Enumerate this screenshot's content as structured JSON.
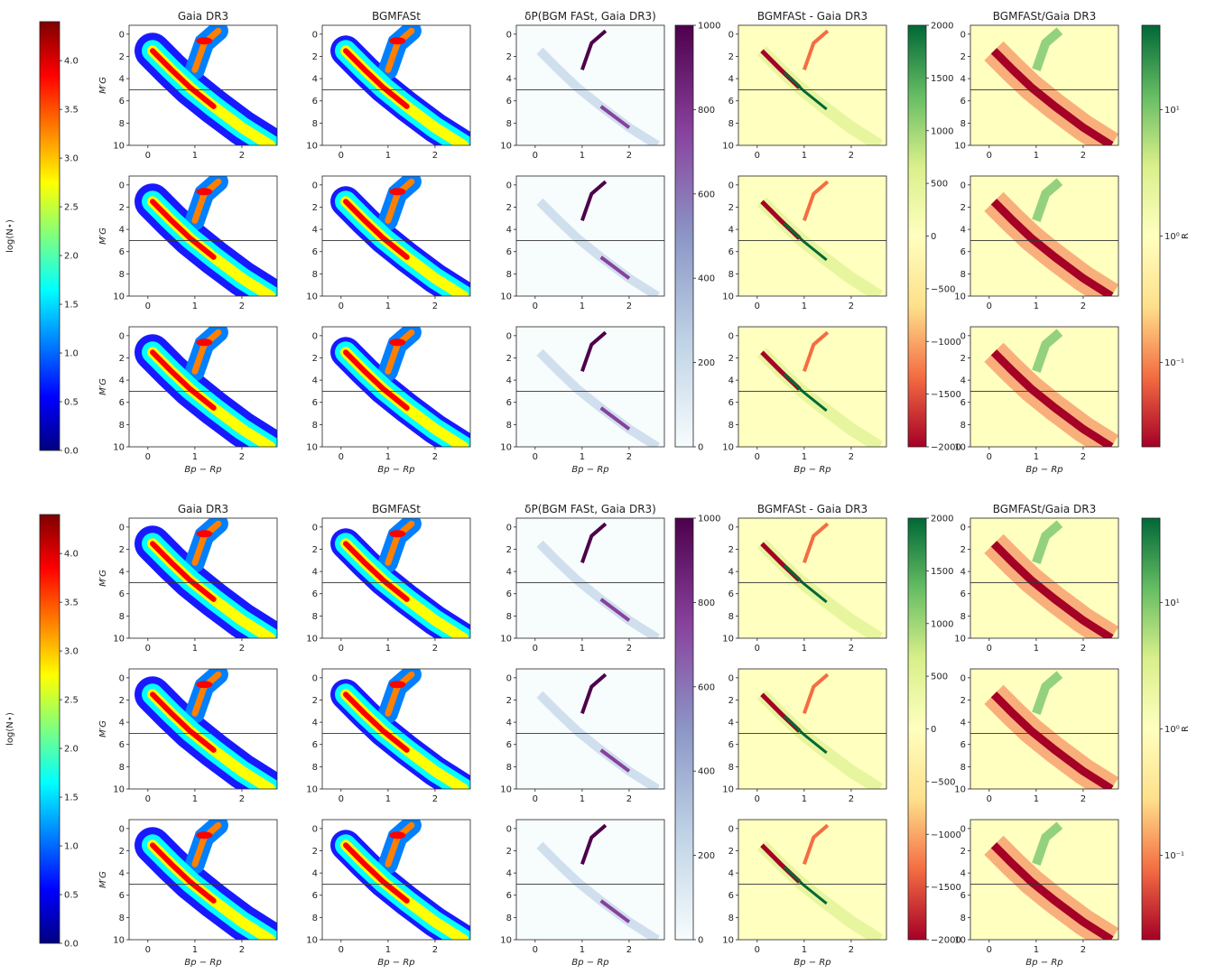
{
  "figure": {
    "columns": [
      {
        "key": "gaia",
        "title": "Gaia DR3",
        "kind": "density"
      },
      {
        "key": "bgm",
        "title": "BGMFASt",
        "kind": "density"
      },
      {
        "key": "delta",
        "title": "δP(BGM FASt, Gaia DR3)",
        "kind": "delta"
      },
      {
        "key": "diff",
        "title": "BGMFASt - Gaia DR3",
        "kind": "diff"
      },
      {
        "key": "ratio",
        "title": "BGMFASt/Gaia DR3",
        "kind": "ratio"
      }
    ],
    "panels_per_column": 3,
    "panel_groups": 2
  },
  "chart_data": {
    "type": "heatmap",
    "xlabel": "Bp − Rp",
    "ylabel": "M′G",
    "xlim": [
      -0.4,
      2.75
    ],
    "ylim": [
      10,
      -0.8
    ],
    "x_ticks": [
      0,
      1,
      2
    ],
    "y_ticks": [
      0,
      2,
      4,
      6,
      8,
      10
    ],
    "reference_line_MG": 5,
    "structures": {
      "main_sequence": {
        "points": [
          [
            0.1,
            1.5
          ],
          [
            0.5,
            3.2
          ],
          [
            0.9,
            4.8
          ],
          [
            1.4,
            6.5
          ],
          [
            2.0,
            8.4
          ],
          [
            2.6,
            10.0
          ]
        ]
      },
      "red_clump": {
        "x": 1.2,
        "MG": 0.6
      },
      "giant_branch": {
        "points": [
          [
            1.0,
            3.2
          ],
          [
            1.1,
            2.0
          ],
          [
            1.2,
            0.8
          ],
          [
            1.5,
            -0.3
          ]
        ]
      }
    },
    "colorbars": {
      "density": {
        "label": "log(N⋆)",
        "range": [
          0,
          4.4
        ],
        "ticks": [
          "0.0",
          "0.5",
          "1.0",
          "1.5",
          "2.0",
          "2.5",
          "3.0",
          "3.5",
          "4.0"
        ],
        "cmap": "jet"
      },
      "delta": {
        "label": "",
        "range": [
          0,
          1000
        ],
        "ticks": [
          "0",
          "200",
          "400",
          "600",
          "800",
          "1000"
        ],
        "cmap": "BuPu"
      },
      "diff": {
        "label": "",
        "range": [
          -2000,
          2000
        ],
        "ticks": [
          "−2000",
          "−1500",
          "−1000",
          "−500",
          "0",
          "500",
          "1000",
          "1500",
          "2000"
        ],
        "cmap": "RdYlGn"
      },
      "ratio": {
        "label": "R",
        "range": [
          0.02,
          50
        ],
        "ticks": [
          "10⁻¹",
          "10⁰",
          "10¹"
        ],
        "cmap": "RdYlGn"
      }
    }
  },
  "colors": {
    "jet": [
      "#00007f",
      "#0000ff",
      "#007fff",
      "#00ffff",
      "#7fff7f",
      "#ffff00",
      "#ff7f00",
      "#ff0000",
      "#7f0000"
    ],
    "bupu": [
      "#f7fcfd",
      "#bfd3e6",
      "#8c96c6",
      "#88419d",
      "#4d004b"
    ],
    "rdylgn": [
      "#a50026",
      "#f46d43",
      "#fee08b",
      "#ffffbf",
      "#d9ef8b",
      "#66bd63",
      "#006837"
    ]
  }
}
